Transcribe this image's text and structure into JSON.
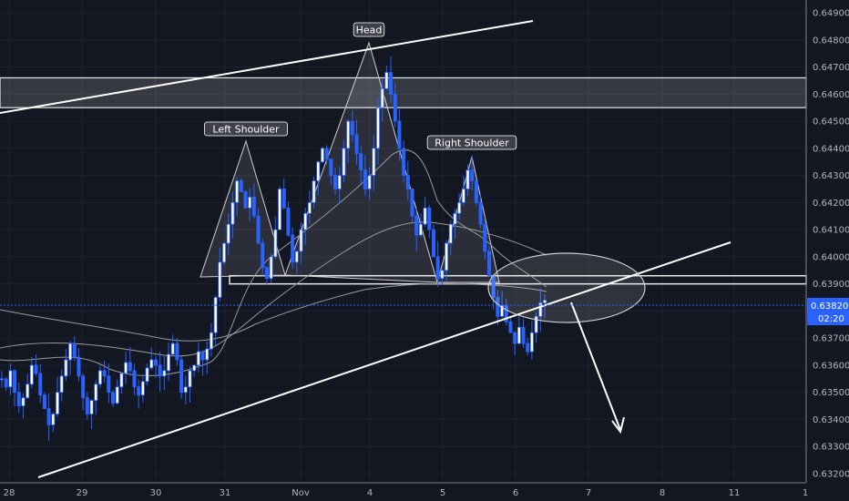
{
  "chart_data": {
    "type": "candlestick",
    "title": "",
    "xlabel": "",
    "ylabel": "",
    "ylim": [
      0.632,
      0.649
    ],
    "y_ticks": [
      "0.64900",
      "0.64800",
      "0.64700",
      "0.64600",
      "0.64500",
      "0.64400",
      "0.64300",
      "0.64200",
      "0.64100",
      "0.64000",
      "0.63900",
      "0.63800",
      "0.63700",
      "0.63600",
      "0.63500",
      "0.63400",
      "0.63300",
      "0.63200"
    ],
    "x_ticks": [
      "28",
      "29",
      "30",
      "31",
      "Nov",
      "4",
      "5",
      "6",
      "7",
      "8",
      "11",
      "1"
    ],
    "current_price": "0.63820",
    "countdown": "02:20",
    "candle_color": "#2962ff",
    "annotations": [
      {
        "label": "Left Shoulder",
        "x": "31",
        "y": 0.6445
      },
      {
        "label": "Head",
        "x": "4",
        "y": 0.6482
      },
      {
        "label": "Right Shoulder",
        "x": "5",
        "y": 0.6441
      }
    ],
    "zones": [
      {
        "name": "resistance-zone",
        "y_top": 0.6466,
        "y_bottom": 0.6455
      },
      {
        "name": "neckline-zone",
        "y_top": 0.6393,
        "y_bottom": 0.639
      }
    ],
    "series": [
      {
        "values": [
          0.6355,
          0.6352,
          0.6358,
          0.635,
          0.6345,
          0.6348,
          0.6353,
          0.636,
          0.6357,
          0.6349,
          0.6344,
          0.6338,
          0.6342,
          0.635,
          0.6356,
          0.6362,
          0.6368,
          0.6363,
          0.6356,
          0.6348,
          0.6342,
          0.6347,
          0.6353,
          0.6358,
          0.6356,
          0.635,
          0.6346,
          0.6352,
          0.6357,
          0.6361,
          0.6358,
          0.6352,
          0.6349,
          0.6354,
          0.6359,
          0.6362,
          0.636,
          0.6356,
          0.6358,
          0.6364,
          0.6368,
          0.6362,
          0.635,
          0.6352,
          0.6358,
          0.636,
          0.6365,
          0.6362,
          0.6366,
          0.6372,
          0.6385,
          0.6398,
          0.6405,
          0.6412,
          0.642,
          0.6428,
          0.6424,
          0.6418,
          0.6422,
          0.6415,
          0.6405,
          0.6396,
          0.6392,
          0.64,
          0.641,
          0.6425,
          0.6418,
          0.6408,
          0.6398,
          0.6402,
          0.641,
          0.6416,
          0.642,
          0.6428,
          0.6435,
          0.644,
          0.6436,
          0.643,
          0.6425,
          0.643,
          0.644,
          0.645,
          0.6445,
          0.6438,
          0.6432,
          0.6425,
          0.643,
          0.644,
          0.6455,
          0.6462,
          0.6468,
          0.646,
          0.645,
          0.644,
          0.643,
          0.6425,
          0.6415,
          0.6408,
          0.6412,
          0.6418,
          0.641,
          0.64,
          0.6392,
          0.6395,
          0.6405,
          0.6412,
          0.6416,
          0.642,
          0.6425,
          0.6432,
          0.6428,
          0.642,
          0.6412,
          0.6402,
          0.6393,
          0.6385,
          0.6378,
          0.6382,
          0.6376,
          0.6372,
          0.6368,
          0.6374,
          0.6368,
          0.6365,
          0.6372,
          0.6378,
          0.6383,
          0.6384
        ]
      }
    ]
  }
}
